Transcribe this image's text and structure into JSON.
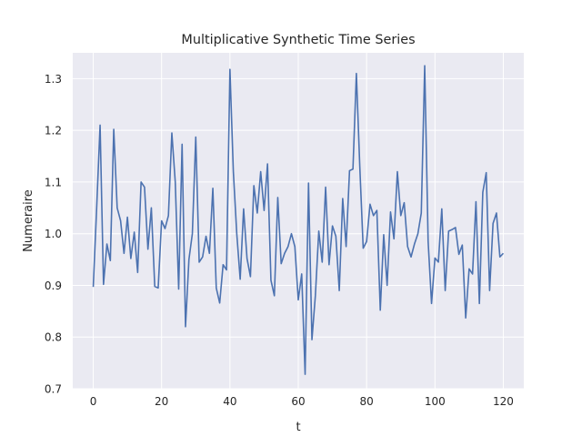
{
  "chart_data": {
    "type": "line",
    "title": "Multiplicative Synthetic Time Series",
    "xlabel": "t",
    "ylabel": "Numeraire",
    "xlim": [
      -6,
      126
    ],
    "ylim": [
      0.7,
      1.35
    ],
    "xticks": [
      0,
      20,
      40,
      60,
      80,
      100,
      120
    ],
    "yticks": [
      0.7,
      0.8,
      0.9,
      1.0,
      1.1,
      1.2,
      1.3
    ],
    "ytick_labels": [
      "0.7",
      "0.8",
      "0.9",
      "1.0",
      "1.1",
      "1.2",
      "1.3"
    ],
    "grid": true,
    "background": "#eaeaf2",
    "line_color": "#4c72b0",
    "series": [
      {
        "x": [
          0,
          1,
          2,
          3,
          4,
          5,
          6,
          7,
          8,
          9,
          10,
          11,
          12,
          13,
          14,
          15,
          16,
          17,
          18,
          19,
          20,
          21,
          22,
          23,
          24,
          25,
          26,
          27,
          28,
          29,
          30,
          31,
          32,
          33,
          34,
          35,
          36,
          37,
          38,
          39,
          40,
          41,
          42,
          43,
          44,
          45,
          46,
          47,
          48,
          49,
          50,
          51,
          52,
          53,
          54,
          55,
          56,
          57,
          58,
          59,
          60,
          61,
          62,
          63,
          64,
          65,
          66,
          67,
          68,
          69,
          70,
          71,
          72,
          73,
          74,
          75,
          76,
          77,
          78,
          79,
          80,
          81,
          82,
          83,
          84,
          85,
          86,
          87,
          88,
          89,
          90,
          91,
          92,
          93,
          94,
          95,
          96,
          97,
          98,
          99,
          100,
          101,
          102,
          103,
          104,
          105,
          106,
          107,
          108,
          109,
          110,
          111,
          112,
          113,
          114,
          115,
          116,
          117,
          118,
          119,
          120
        ],
        "y": [
          0.897,
          1.05,
          1.21,
          0.902,
          0.98,
          0.948,
          1.202,
          1.05,
          1.025,
          0.962,
          1.032,
          0.952,
          1.003,
          0.925,
          1.1,
          1.09,
          0.97,
          1.05,
          0.898,
          0.895,
          1.025,
          1.01,
          1.035,
          1.195,
          1.1,
          0.893,
          1.173,
          0.82,
          0.95,
          1.0,
          1.187,
          0.945,
          0.955,
          0.995,
          0.962,
          1.088,
          0.895,
          0.866,
          0.94,
          0.93,
          1.318,
          1.12,
          1.0,
          0.912,
          1.048,
          0.952,
          0.917,
          1.093,
          1.04,
          1.12,
          1.045,
          1.135,
          0.91,
          0.88,
          1.07,
          0.942,
          0.962,
          0.975,
          1.0,
          0.975,
          0.872,
          0.922,
          0.728,
          1.098,
          0.795,
          0.88,
          1.005,
          0.945,
          1.09,
          0.94,
          1.015,
          0.995,
          0.89,
          1.068,
          0.975,
          1.122,
          1.125,
          1.31,
          1.13,
          0.972,
          0.985,
          1.057,
          1.035,
          1.045,
          0.852,
          0.998,
          0.9,
          1.042,
          0.99,
          1.12,
          1.035,
          1.06,
          0.975,
          0.955,
          0.98,
          1.0,
          1.04,
          1.325,
          0.985,
          0.865,
          0.953,
          0.945,
          1.048,
          0.89,
          1.005,
          1.008,
          1.012,
          0.96,
          0.978,
          0.837,
          0.932,
          0.922,
          1.062,
          0.865,
          1.08,
          1.118,
          0.89,
          1.02,
          1.04,
          0.955,
          0.962
        ]
      }
    ]
  }
}
